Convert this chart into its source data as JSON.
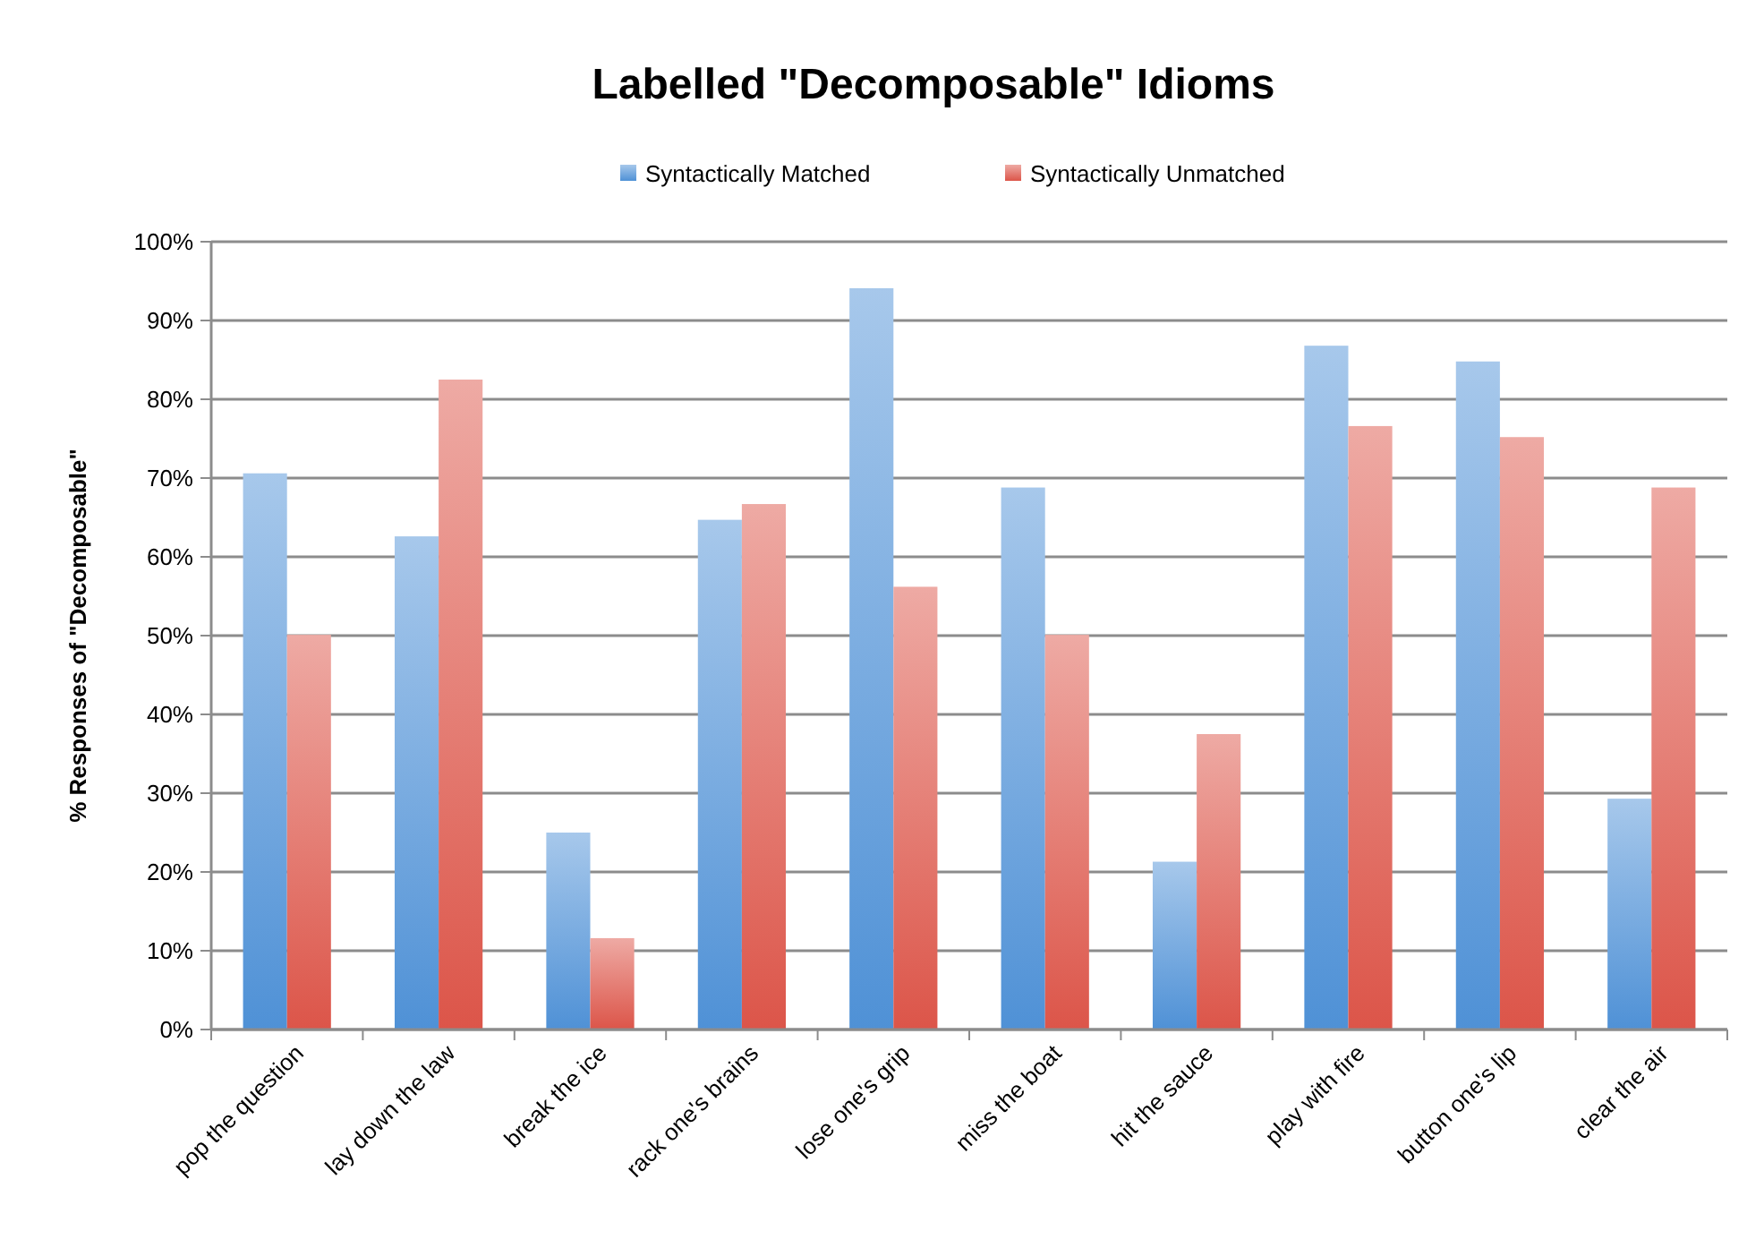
{
  "chart_data": {
    "type": "bar",
    "title": "Labelled \"Decomposable\" Idioms",
    "ylabel": "% Responses of \"Decomposable\"",
    "categories": [
      "pop the question",
      "lay down the law",
      "break the ice",
      "rack one's brains",
      "lose one's grip",
      "miss the boat",
      "hit the sauce",
      "play with fire",
      "button one's lip",
      "clear the air"
    ],
    "series": [
      {
        "name": "Syntactically Matched",
        "color": "#4f91d6",
        "values": [
          70.6,
          62.6,
          25.0,
          64.7,
          94.1,
          68.8,
          21.3,
          86.8,
          84.8,
          29.3
        ]
      },
      {
        "name": "Syntactically Unmatched",
        "color": "#dc5549",
        "values": [
          50.1,
          82.5,
          11.6,
          66.7,
          56.2,
          50.1,
          37.5,
          76.6,
          75.2,
          68.8
        ]
      }
    ],
    "ylim": [
      0,
      100
    ],
    "yticks": [
      {
        "value": 0,
        "label": "0%"
      },
      {
        "value": 10,
        "label": "10%"
      },
      {
        "value": 20,
        "label": "20%"
      },
      {
        "value": 30,
        "label": "30%"
      },
      {
        "value": 40,
        "label": "40%"
      },
      {
        "value": 50,
        "label": "50%"
      },
      {
        "value": 60,
        "label": "60%"
      },
      {
        "value": 70,
        "label": "70%"
      },
      {
        "value": 80,
        "label": "80%"
      },
      {
        "value": 90,
        "label": "90%"
      },
      {
        "value": 100,
        "label": "100%"
      }
    ],
    "grid": "y",
    "legend": "top"
  }
}
